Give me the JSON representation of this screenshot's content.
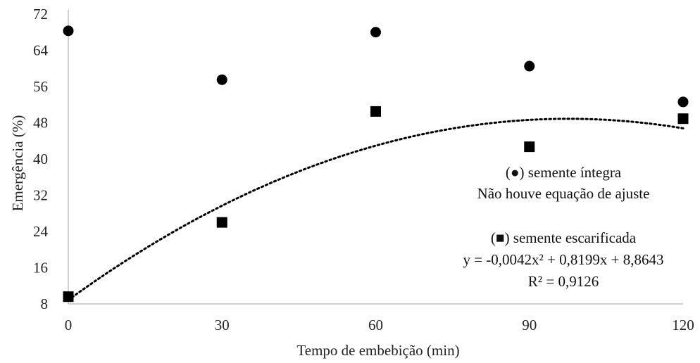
{
  "chart_data": {
    "type": "scatter",
    "xlabel": "Tempo de embebição (min)",
    "ylabel": "Emergência (%)",
    "x_ticks": [
      0,
      30,
      60,
      90,
      120
    ],
    "y_ticks": [
      8,
      16,
      24,
      32,
      40,
      48,
      56,
      64,
      72
    ],
    "xlim": [
      0,
      120
    ],
    "ylim": [
      8,
      72
    ],
    "grid": false,
    "series": [
      {
        "marker": "circle",
        "color": "#000000",
        "x": [
          0,
          30,
          60,
          90,
          120
        ],
        "y": [
          68.3,
          57.5,
          68.0,
          60.5,
          52.6
        ]
      },
      {
        "marker": "square",
        "color": "#000000",
        "x": [
          0,
          30,
          60,
          90,
          120
        ],
        "y": [
          9.6,
          26.0,
          50.5,
          42.7,
          48.9
        ]
      }
    ],
    "trendline": {
      "style": "dotted",
      "coefficients": {
        "a": -0.0042,
        "b": 0.8199,
        "c": 8.8643
      },
      "x_range": [
        0,
        120
      ]
    },
    "annotations": {
      "circle_label_prefix": "(",
      "circle_label_symbol": "●",
      "circle_label_text": ") semente íntegra",
      "circle_note": "Não houve equação de ajuste",
      "square_label_prefix": "(",
      "square_label_symbol": "■",
      "square_label_text": ") semente escarificada",
      "equation": "y = -0,0042x² + 0,8199x + 8,8643",
      "r2": "R² = 0,9126"
    }
  }
}
